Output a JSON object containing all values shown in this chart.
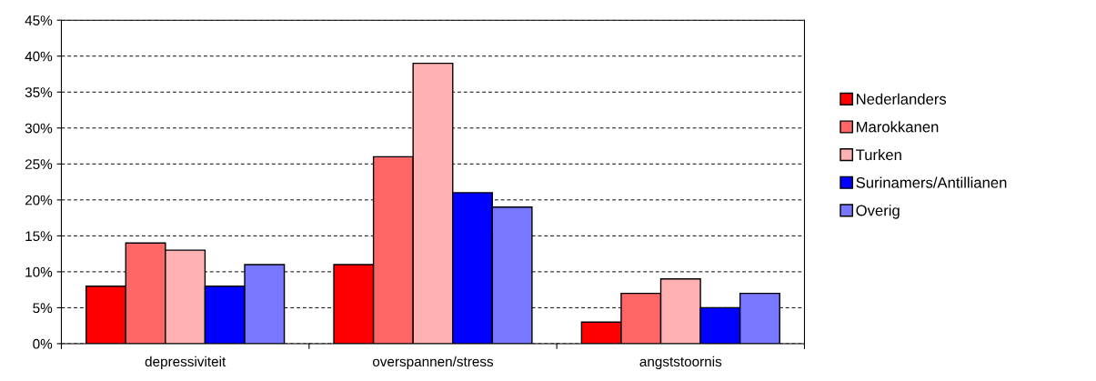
{
  "chart_data": {
    "type": "bar",
    "categories": [
      "depressiviteit",
      "overspannen/stress",
      "angststoornis"
    ],
    "series": [
      {
        "name": "Nederlanders",
        "color": "#ff0000",
        "values": [
          8,
          11,
          3
        ]
      },
      {
        "name": "Marokkanen",
        "color": "#ff6666",
        "values": [
          14,
          26,
          7
        ]
      },
      {
        "name": "Turken",
        "color": "#ffb0b0",
        "values": [
          13,
          39,
          9
        ]
      },
      {
        "name": "Surinamers/Antillianen",
        "color": "#0000ff",
        "values": [
          8,
          21,
          5
        ]
      },
      {
        "name": "Overig",
        "color": "#7777ff",
        "values": [
          11,
          19,
          7
        ]
      }
    ],
    "ylim": [
      0,
      45
    ],
    "yticks": [
      {
        "value": 0,
        "label": "0%"
      },
      {
        "value": 5,
        "label": "5%"
      },
      {
        "value": 10,
        "label": "10%"
      },
      {
        "value": 15,
        "label": "15%"
      },
      {
        "value": 20,
        "label": "20%"
      },
      {
        "value": 25,
        "label": "25%"
      },
      {
        "value": 30,
        "label": "30%"
      },
      {
        "value": 35,
        "label": "35%"
      },
      {
        "value": 40,
        "label": "40%"
      },
      {
        "value": 45,
        "label": "45%"
      }
    ],
    "grid": "y",
    "legend": "right"
  }
}
